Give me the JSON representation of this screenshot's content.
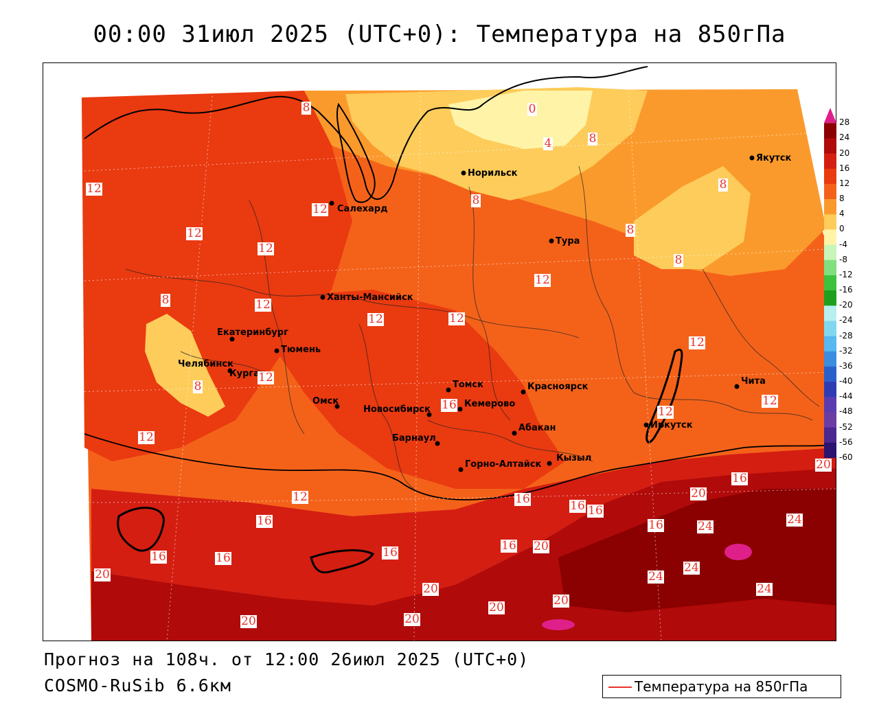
{
  "title": "00:00 31июл 2025 (UTC+0): Температура на 850гПа",
  "footer": {
    "forecast": "Прогноз на 108ч. от 12:00 26июл 2025 (UTC+0)",
    "model": "COSMO-RuSib 6.6км"
  },
  "legend": {
    "label": "Температура на 850гПа",
    "line_color": "#e8332a"
  },
  "colorbar": {
    "ticks": [
      "28",
      "24",
      "20",
      "16",
      "12",
      "8",
      "4",
      "0",
      "-4",
      "-8",
      "-12",
      "-16",
      "-20",
      "-24",
      "-28",
      "-32",
      "-36",
      "-40",
      "-44",
      "-48",
      "-52",
      "-56",
      "-60"
    ],
    "colors": [
      "#8b0000",
      "#b00a0a",
      "#d41e12",
      "#ea3a10",
      "#f4621a",
      "#fb9a2c",
      "#fdcc5a",
      "#fff3a8",
      "#c8f5b8",
      "#80e080",
      "#3cc23c",
      "#1ea01e",
      "#b8f0f0",
      "#80d8f0",
      "#58b8f0",
      "#3c8ce0",
      "#2a60cc",
      "#2e3cb4",
      "#5a3cb0",
      "#6a3ca4",
      "#4a2890",
      "#2a1470"
    ]
  },
  "cities": [
    {
      "name": "Салехард"
    },
    {
      "name": "Норильск"
    },
    {
      "name": "Якутск"
    },
    {
      "name": "Тура"
    },
    {
      "name": "Ханты-Мансийск"
    },
    {
      "name": "Екатеринбург"
    },
    {
      "name": "Тюмень"
    },
    {
      "name": "Челябинск"
    },
    {
      "name": "Курган"
    },
    {
      "name": "Омск"
    },
    {
      "name": "Новосибирск"
    },
    {
      "name": "Томск"
    },
    {
      "name": "Кемерово"
    },
    {
      "name": "Красноярск"
    },
    {
      "name": "Абакан"
    },
    {
      "name": "Барнаул"
    },
    {
      "name": "Горно-Алтайск"
    },
    {
      "name": "Кызыл"
    },
    {
      "name": "Иркутск"
    },
    {
      "name": "Чита"
    }
  ],
  "isotherm_labels": [
    "0",
    "4",
    "8",
    "8",
    "8",
    "8",
    "8",
    "8",
    "8",
    "8",
    "12",
    "12",
    "12",
    "12",
    "12",
    "12",
    "12",
    "12",
    "12",
    "12",
    "12",
    "12",
    "12",
    "12",
    "16",
    "16",
    "16",
    "16",
    "16",
    "16",
    "16",
    "16",
    "16",
    "16",
    "16",
    "20",
    "20",
    "20",
    "20",
    "20",
    "20",
    "20",
    "20",
    "20",
    "24",
    "24",
    "24",
    "24",
    "24"
  ]
}
